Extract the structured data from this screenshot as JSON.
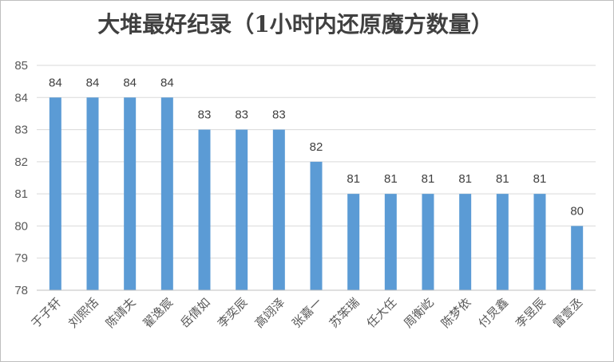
{
  "chart_data": {
    "type": "bar",
    "title": "大堆最好纪录（1小时内还原魔方数量）",
    "categories": [
      "于子轩",
      "刘熙恬",
      "陈靖夫",
      "翟逸宸",
      "岳倩如",
      "李奕辰",
      "高翊泽",
      "张嘉一",
      "苏笨瑞",
      "任大任",
      "周衡屹",
      "陈梦依",
      "付炅鑫",
      "李昱辰",
      "雷壹丞"
    ],
    "values": [
      84,
      84,
      84,
      84,
      83,
      83,
      83,
      82,
      81,
      81,
      81,
      81,
      81,
      81,
      80
    ],
    "xlabel": "",
    "ylabel": "",
    "ylim": [
      78,
      85
    ],
    "yticks": [
      "78",
      "79",
      "80",
      "81",
      "82",
      "83",
      "84",
      "85"
    ],
    "grid": true,
    "colors": {
      "bar": "#5b9bd5",
      "grid": "#d9d9d9",
      "axis": "#bfbfbf"
    }
  }
}
